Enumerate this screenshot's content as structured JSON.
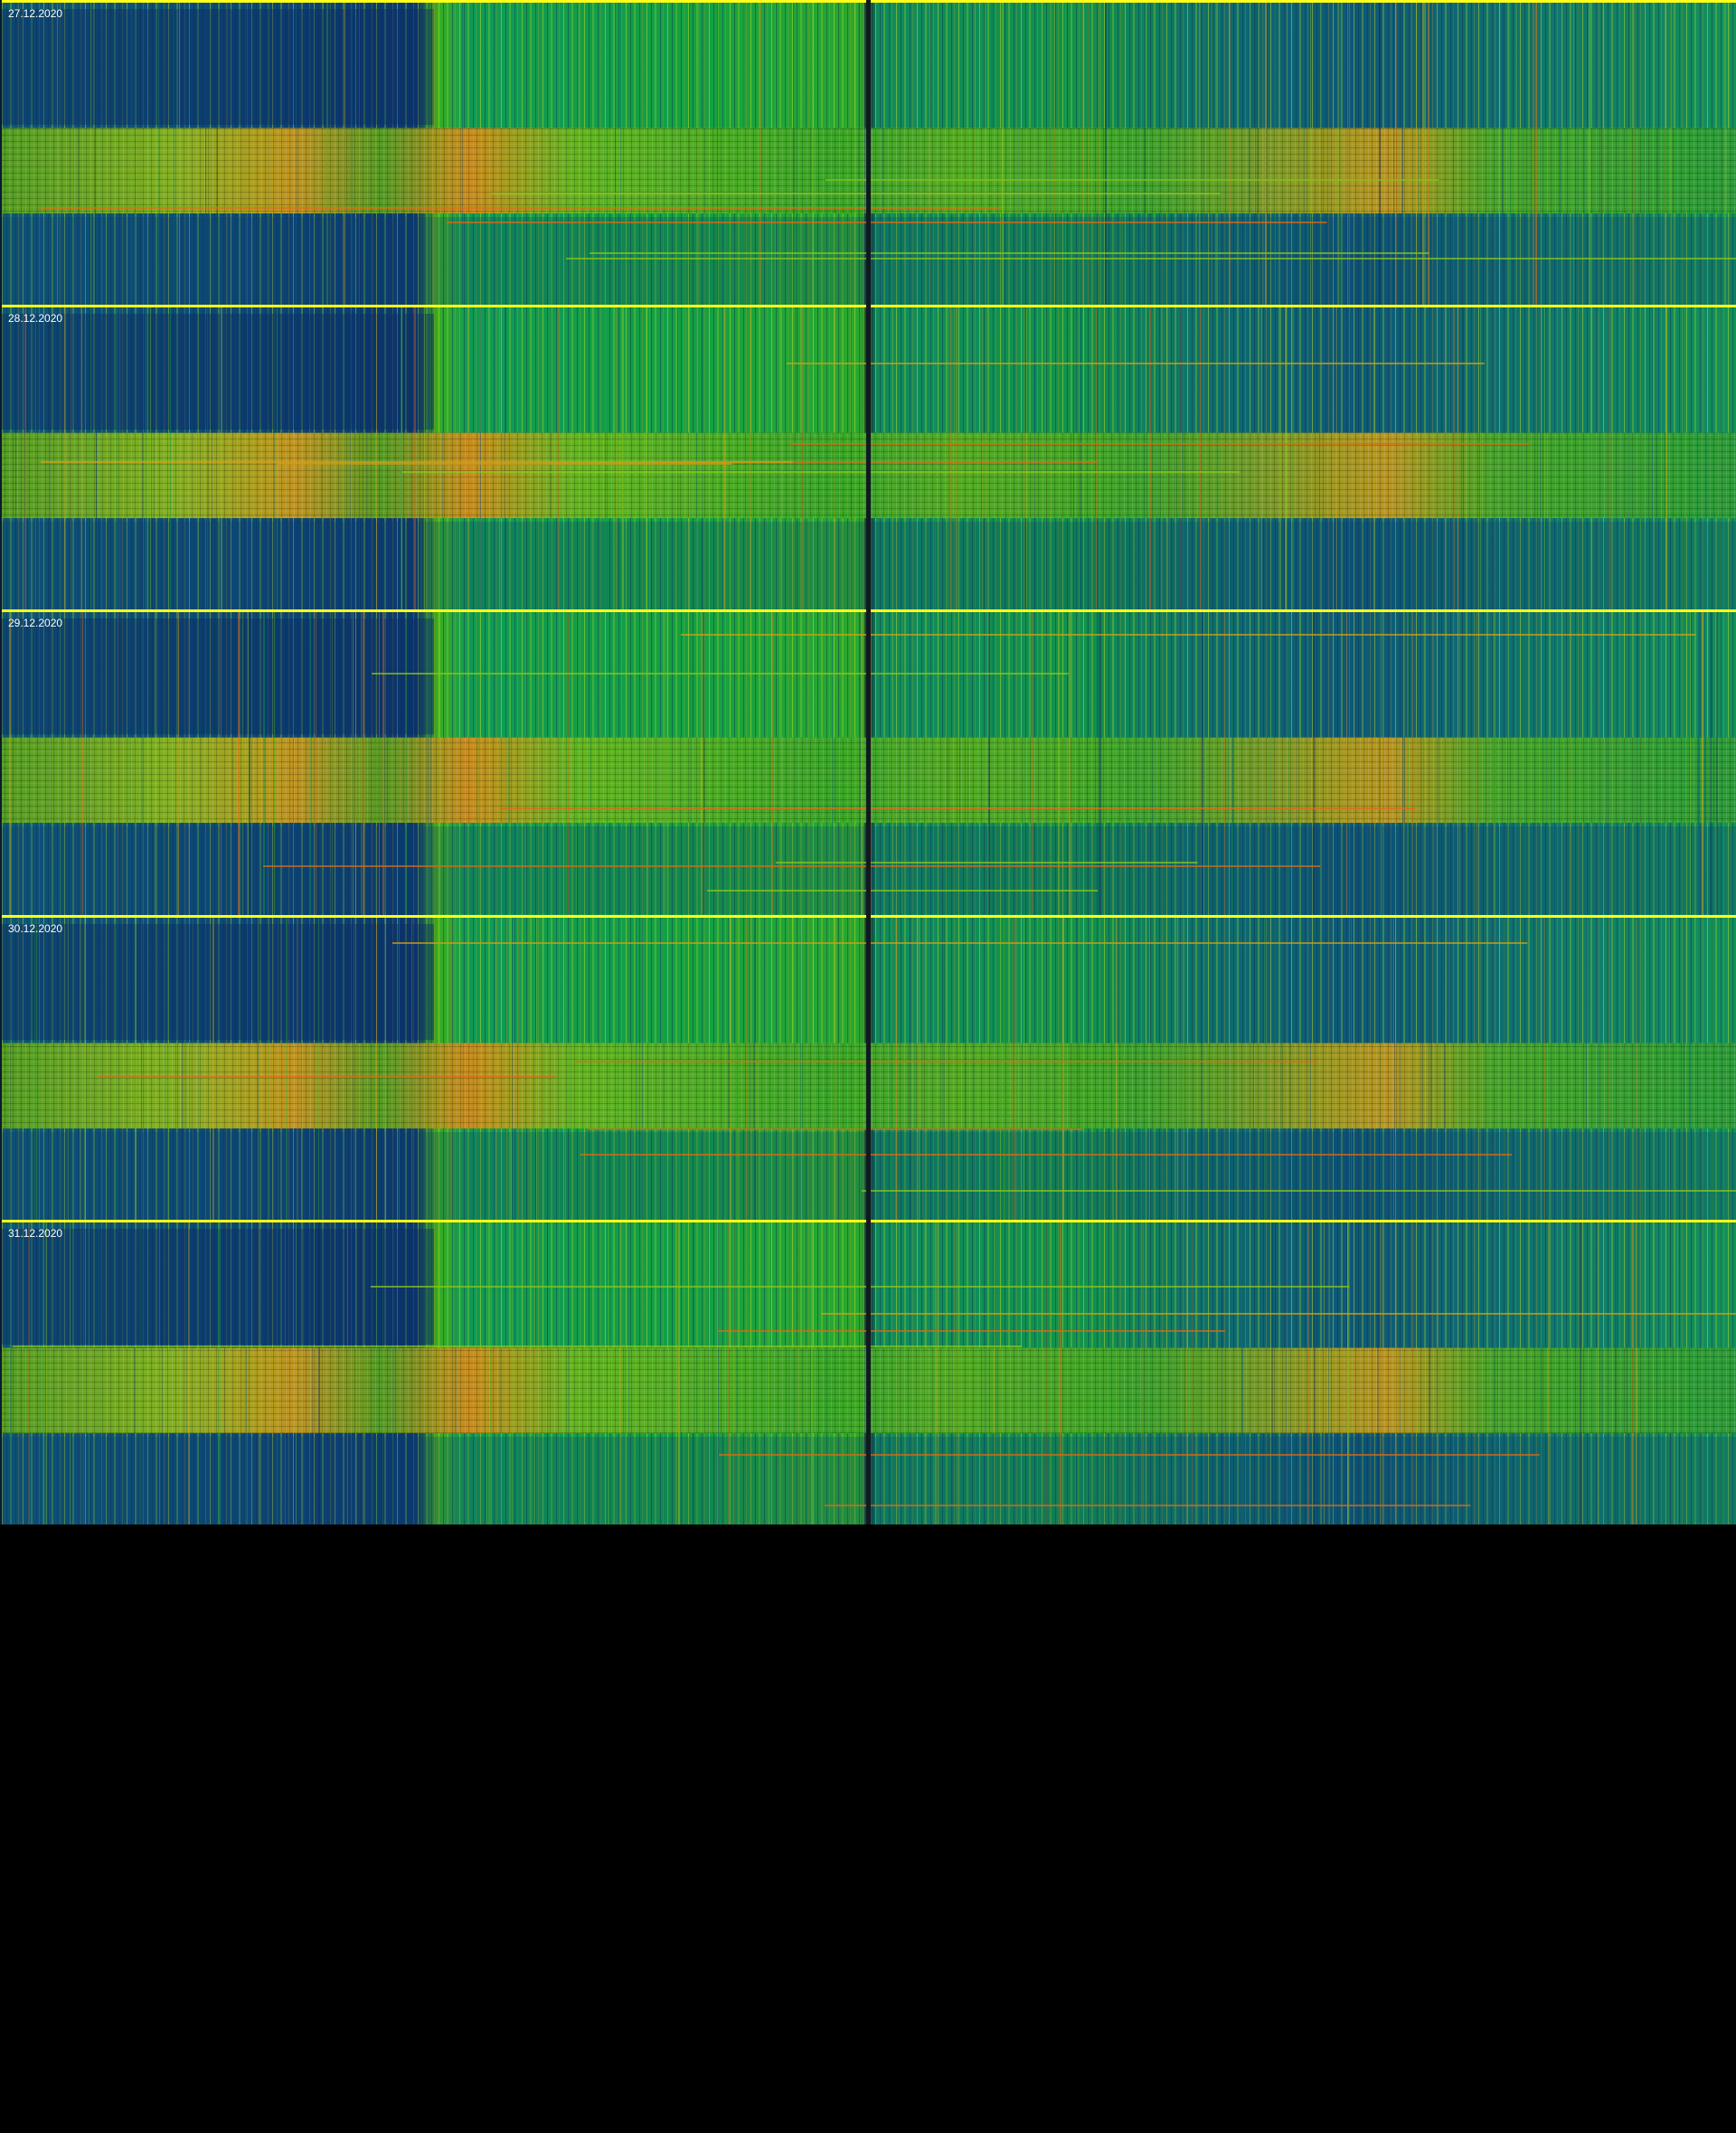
{
  "chart_data": {
    "type": "heatmap",
    "title": "",
    "xlabel": "",
    "ylabel": "",
    "panels": [
      {
        "label": "27.12.2020"
      },
      {
        "label": "28.12.2020"
      },
      {
        "label": "29.12.2020"
      },
      {
        "label": "30.12.2020"
      },
      {
        "label": "31.12.2020"
      }
    ],
    "colormap": [
      "#0b2a66",
      "#0d4d7a",
      "#0f6f70",
      "#139848",
      "#3aae22",
      "#8cc81a",
      "#d4a014",
      "#e06a14"
    ],
    "separator_color": "#ffff1a"
  }
}
